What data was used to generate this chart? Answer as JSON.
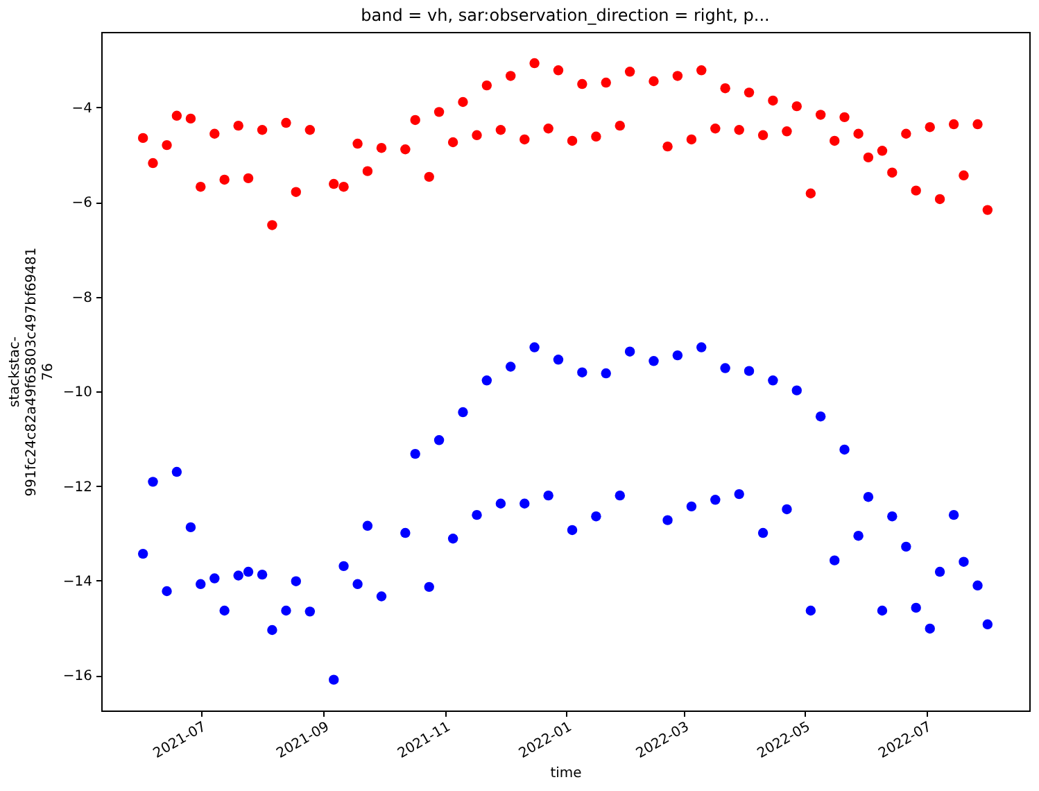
{
  "chart_data": {
    "type": "scatter",
    "title": "band = vh, sar:observation_direction = right, p...",
    "xlabel": "time",
    "ylabel": "stackstac-\n991fc24c82a49f65803c497bf69481\n76",
    "x": [
      "2021-06-02",
      "2021-06-07",
      "2021-06-14",
      "2021-06-19",
      "2021-06-26",
      "2021-07-01",
      "2021-07-08",
      "2021-07-13",
      "2021-07-20",
      "2021-07-25",
      "2021-08-01",
      "2021-08-06",
      "2021-08-13",
      "2021-08-18",
      "2021-08-25",
      "2021-09-06",
      "2021-09-11",
      "2021-09-18",
      "2021-09-23",
      "2021-09-30",
      "2021-10-12",
      "2021-10-17",
      "2021-10-24",
      "2021-10-29",
      "2021-11-05",
      "2021-11-10",
      "2021-11-17",
      "2021-11-22",
      "2021-11-29",
      "2021-12-04",
      "2021-12-11",
      "2021-12-16",
      "2021-12-23",
      "2021-12-28",
      "2022-01-04",
      "2022-01-09",
      "2022-01-16",
      "2022-01-21",
      "2022-01-28",
      "2022-02-02",
      "2022-02-14",
      "2022-02-21",
      "2022-02-26",
      "2022-03-05",
      "2022-03-10",
      "2022-03-17",
      "2022-03-22",
      "2022-03-29",
      "2022-04-03",
      "2022-04-10",
      "2022-04-15",
      "2022-04-22",
      "2022-04-27",
      "2022-05-04",
      "2022-05-09",
      "2022-05-16",
      "2022-05-21",
      "2022-05-28",
      "2022-06-02",
      "2022-06-09",
      "2022-06-14",
      "2022-06-21",
      "2022-06-26",
      "2022-07-03",
      "2022-07-08",
      "2022-07-15",
      "2022-07-20",
      "2022-07-27",
      "2022-08-01"
    ],
    "series": [
      {
        "color": "#ff0000",
        "values": [
          -4.65,
          -5.18,
          -4.8,
          -4.18,
          -4.24,
          -5.68,
          -4.56,
          -5.53,
          -4.39,
          -5.5,
          -4.48,
          -6.49,
          -4.33,
          -5.79,
          -4.48,
          -5.62,
          -5.68,
          -4.77,
          -5.35,
          -4.86,
          -4.89,
          -4.27,
          -5.47,
          -4.1,
          -4.74,
          -3.89,
          -4.59,
          -3.54,
          -4.48,
          -3.34,
          -4.68,
          -3.07,
          -4.45,
          -3.22,
          -4.71,
          -3.51,
          -4.62,
          -3.48,
          -4.39,
          -3.25,
          -3.45,
          -4.83,
          -3.34,
          -4.68,
          -3.22,
          -4.45,
          -3.6,
          -4.48,
          -3.69,
          -4.59,
          -3.86,
          -4.51,
          -3.98,
          -5.82,
          -4.16,
          -4.71,
          -4.21,
          -4.56,
          -5.06,
          -4.92,
          -5.38,
          -4.56,
          -5.76,
          -4.42,
          -5.94,
          -4.36,
          -5.44,
          -4.36,
          -6.17
        ]
      },
      {
        "color": "#0000ff",
        "values": [
          -13.43,
          -11.91,
          -14.22,
          -11.7,
          -12.87,
          -14.07,
          -13.95,
          -14.63,
          -13.89,
          -13.81,
          -13.87,
          -15.04,
          -14.63,
          -14.01,
          -14.65,
          -16.09,
          -13.69,
          -14.07,
          -12.84,
          -14.33,
          -12.99,
          -11.32,
          -14.13,
          -11.03,
          -13.11,
          -10.44,
          -12.61,
          -9.77,
          -12.37,
          -9.48,
          -12.37,
          -9.07,
          -12.2,
          -9.33,
          -12.93,
          -9.6,
          -12.64,
          -9.62,
          -12.2,
          -9.16,
          -9.36,
          -12.72,
          -9.24,
          -12.43,
          -9.07,
          -12.29,
          -9.51,
          -12.17,
          -9.57,
          -12.99,
          -9.77,
          -12.49,
          -9.98,
          -14.63,
          -10.53,
          -13.57,
          -11.23,
          -13.05,
          -12.23,
          -14.63,
          -12.64,
          -13.28,
          -14.57,
          -15.01,
          -13.81,
          -12.61,
          -13.6,
          -14.1,
          -14.92
        ]
      }
    ],
    "xlim": [
      "2021-05-12",
      "2022-08-22"
    ],
    "xticks": [
      "2021-07",
      "2021-09",
      "2021-11",
      "2022-01",
      "2022-03",
      "2022-05",
      "2022-07"
    ],
    "ylim": [
      -16.74,
      -2.41
    ],
    "yticks": [
      {
        "value": -4,
        "label": "−4"
      },
      {
        "value": -6,
        "label": "−6"
      },
      {
        "value": -8,
        "label": "−8"
      },
      {
        "value": -10,
        "label": "−10"
      },
      {
        "value": -12,
        "label": "−12"
      },
      {
        "value": -14,
        "label": "−14"
      },
      {
        "value": -16,
        "label": "−16"
      }
    ],
    "grid": false,
    "marker": "circle"
  }
}
